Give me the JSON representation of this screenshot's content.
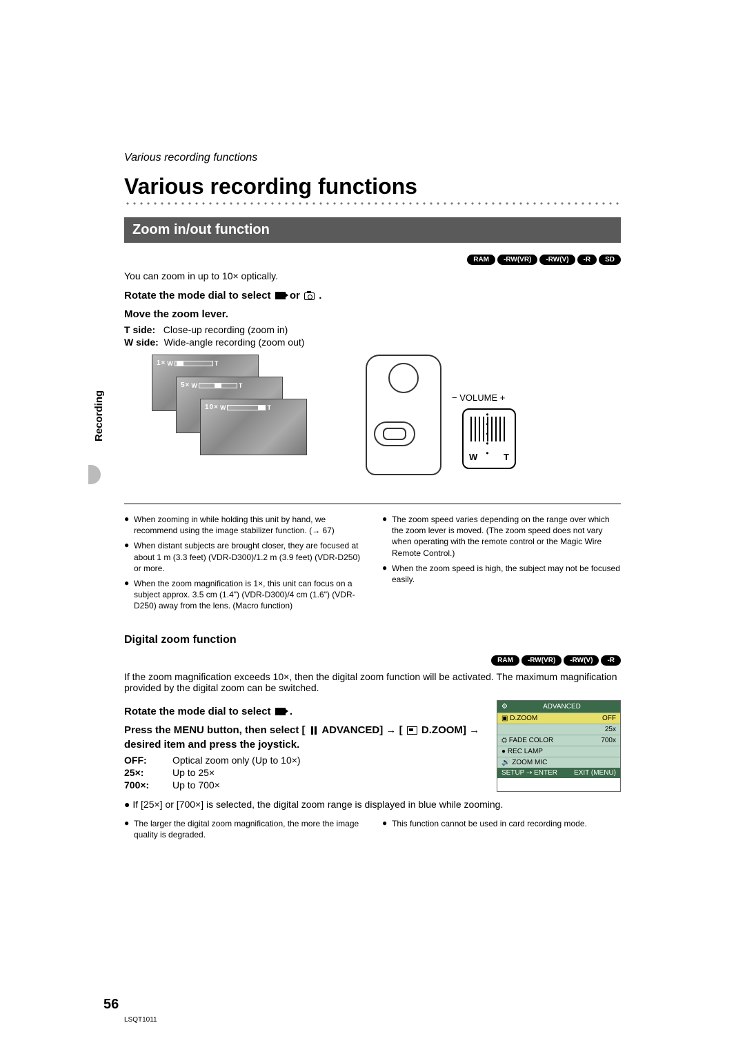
{
  "running_header": "Various recording functions",
  "main_title": "Various recording functions",
  "section_bar": "Zoom in/out function",
  "badges_top": [
    "RAM",
    "-RW(VR)",
    "-RW(V)",
    "-R",
    "SD"
  ],
  "intro": "You can zoom in up to 10× optically.",
  "step1_rotate": "Rotate the mode dial to select ",
  "step1_or": " or ",
  "step1_period": " .",
  "step2_move": "Move the zoom lever.",
  "tside_label": "T side:",
  "tside_text": "Close-up recording (zoom in)",
  "wside_label": "W side:",
  "wside_text": "Wide-angle recording (zoom out)",
  "zoom_bars": {
    "b1_label": "1×",
    "b2_label": "5×",
    "b3_label": "10×",
    "w": "W",
    "t": "T"
  },
  "camera_labels": {
    "volume_minus": "−",
    "volume": "VOLUME",
    "volume_plus": "+",
    "w": "W",
    "dots": "• • • • •",
    "t": "T"
  },
  "left_notes": [
    "When zooming in while holding this unit by hand, we recommend using the image stabilizer function. (→ 67)",
    "When distant subjects are brought closer, they are focused at about 1 m (3.3 feet) (VDR-D300)/1.2 m (3.9 feet) (VDR-D250) or more.",
    "When the zoom magnification is 1×, this unit can focus on a subject approx. 3.5 cm (1.4\") (VDR-D300)/4 cm (1.6\") (VDR-D250) away from the lens. (Macro function)"
  ],
  "right_notes": [
    "The zoom speed varies depending on the range over which the zoom lever is moved. (The zoom speed does not vary when operating with the remote control or the Magic Wire Remote Control.)",
    "When the zoom speed is high, the subject may not be focused easily."
  ],
  "digital_heading": "Digital zoom function",
  "badges_digital": [
    "RAM",
    "-RW(VR)",
    "-RW(V)",
    "-R"
  ],
  "digital_intro": "If the zoom magnification exceeds 10×, then the digital zoom function will be activated. The maximum magnification provided by the digital zoom can be switched.",
  "rotate_select": "Rotate the mode dial to select ",
  "rotate_period": " .",
  "press_menu_1": "Press the MENU button, then select [",
  "press_menu_adv": " ADVANCED]",
  "press_menu_arrow1": " → [",
  "press_menu_dzoom": " D.ZOOM] → desired item and press the joystick.",
  "options": [
    {
      "k": "OFF:",
      "v": "Optical zoom only (Up to 10×)"
    },
    {
      "k": "25×:",
      "v": "Up to 25×"
    },
    {
      "k": "700×:",
      "v": "Up to 700×"
    }
  ],
  "digital_note": "If [25×] or [700×] is selected, the digital zoom range is displayed in blue while zooming.",
  "bottom_left_notes": [
    "The larger the digital zoom magnification, the more the image quality is degraded."
  ],
  "bottom_right_notes": [
    "This function cannot be used in card recording mode."
  ],
  "menu": {
    "title_icon": "⚙",
    "title": "ADVANCED",
    "items": [
      {
        "icon": "▣",
        "label": "D.ZOOM",
        "value": "OFF",
        "sel": true
      },
      {
        "icon": "",
        "label": "",
        "value": "25x",
        "sel": false
      },
      {
        "icon": "⛭",
        "label": "FADE COLOR",
        "value": "700x",
        "sel": false
      },
      {
        "icon": "●",
        "label": "REC LAMP",
        "value": "",
        "sel": false
      },
      {
        "icon": "🔊",
        "label": "ZOOM MIC",
        "value": "",
        "sel": false
      }
    ],
    "footer_left": "SETUP ⇢ ENTER",
    "footer_right": "EXIT (MENU)"
  },
  "vertical_tab": "Recording",
  "page_number": "56",
  "doc_code": "LSQT1011",
  "sym_bullet": "●",
  "sym_arrow": "→"
}
